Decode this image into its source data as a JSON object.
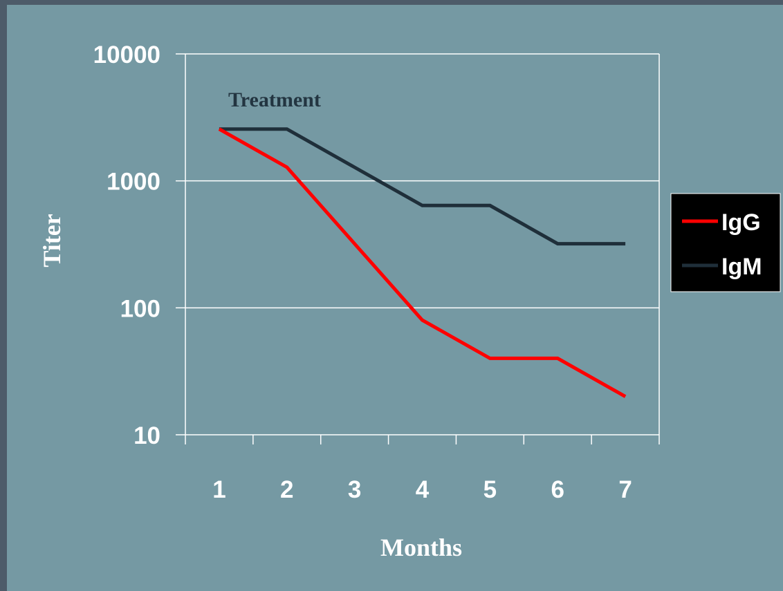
{
  "chart_data": {
    "type": "line",
    "x": [
      1,
      2,
      3,
      4,
      5,
      6,
      7
    ],
    "xlabel": "Months",
    "ylabel": "Titer",
    "yscale": "log",
    "ylim": [
      10,
      10000
    ],
    "yticks": [
      10,
      100,
      1000,
      10000
    ],
    "ytick_labels": [
      "10",
      "100",
      "1000",
      "10000"
    ],
    "xtick_labels": [
      "1",
      "2",
      "3",
      "4",
      "5",
      "6",
      "7"
    ],
    "grid": "horizontal",
    "legend_position": "right",
    "annotation": "Treatment",
    "series": [
      {
        "name": "IgG",
        "color": "#ff0000",
        "values": [
          2560,
          1280,
          320,
          80,
          40,
          40,
          20
        ]
      },
      {
        "name": "IgM",
        "color": "#1f2f3a",
        "values": [
          2560,
          2560,
          1280,
          640,
          640,
          320,
          320
        ]
      }
    ]
  },
  "colors": {
    "plot_background": "#7599a3",
    "slide_background": "#4d5b69",
    "grid": "#ffffff",
    "legend_background": "#000000"
  }
}
